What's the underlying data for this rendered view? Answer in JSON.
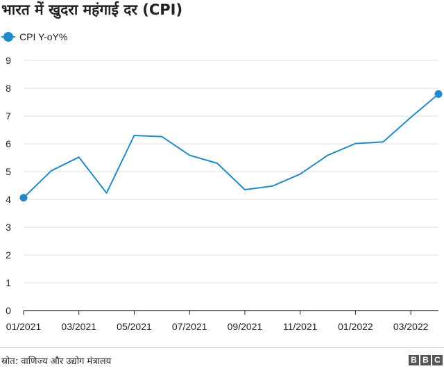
{
  "title": "भारत में खुदरा महंगाई दर (CPI)",
  "source": "स्रोत: वाणिज्य और उद्योग मंत्रालय",
  "logo": [
    "B",
    "B",
    "C"
  ],
  "colors": {
    "series": "#1f8ac7",
    "grid": "#dcdcdc",
    "axis": "#222222"
  },
  "chart_data": {
    "type": "line",
    "title": "भारत में खुदरा महंगाई दर (CPI)",
    "xlabel": "",
    "ylabel": "",
    "ylim": [
      0,
      9
    ],
    "yticks": [
      0,
      1,
      2,
      3,
      4,
      5,
      6,
      7,
      8,
      9
    ],
    "grid": true,
    "legend": "top-left",
    "x": [
      "01/2021",
      "02/2021",
      "03/2021",
      "04/2021",
      "05/2021",
      "06/2021",
      "07/2021",
      "08/2021",
      "09/2021",
      "10/2021",
      "11/2021",
      "12/2021",
      "01/2022",
      "02/2022",
      "03/2022",
      "04/2022"
    ],
    "xticks": [
      "01/2021",
      "03/2021",
      "05/2021",
      "07/2021",
      "09/2021",
      "11/2021",
      "01/2022",
      "03/2022"
    ],
    "series": [
      {
        "name": "CPI Y-oY%",
        "values": [
          4.06,
          5.03,
          5.52,
          4.23,
          6.3,
          6.26,
          5.59,
          5.3,
          4.35,
          4.48,
          4.91,
          5.59,
          6.01,
          6.07,
          6.95,
          7.79
        ]
      }
    ]
  }
}
